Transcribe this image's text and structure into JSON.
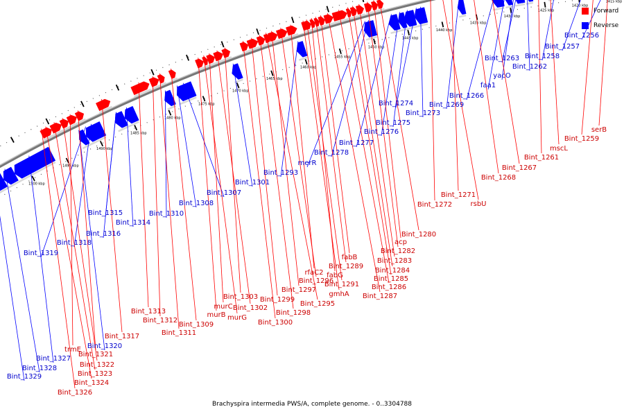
{
  "caption": "Brachyspira intermedia PWS/A, complete genome. - 0..3304788",
  "legend": [
    {
      "label": "Forward",
      "color": "#ff0000"
    },
    {
      "label": "Reverse",
      "color": "#0000ff"
    }
  ],
  "colors": {
    "forward": "#ff0000",
    "reverse": "#0000ff",
    "forward_label": "#cc0000",
    "reverse_label": "#0000cc",
    "backbone": "#777777"
  },
  "kbp_ticks": [
    "1415 kbp",
    "1420 kbp",
    "1425 kbp",
    "1430 kbp",
    "1435 kbp",
    "1440 kbp",
    "1445 kbp",
    "1450 kbp",
    "1455 kbp",
    "1460 kbp",
    "1465 kbp",
    "1470 kbp",
    "1475 kbp",
    "1480 kbp",
    "1485 kbp",
    "1490 kbp",
    "1495 kbp",
    "1500 kbp"
  ],
  "reverse_labels": [
    "Bint_1256",
    "Bint_1257",
    "Bint_1258",
    "Bint_1262",
    "Bint_1263",
    "yacO",
    "faa1",
    "Bint_1266",
    "Bint_1269",
    "Bint_1273",
    "Bint_1274",
    "Bint_1275",
    "Bint_1276",
    "Bint_1277",
    "Bint_1278",
    "merR",
    "Bint_1293",
    "Bint_1301",
    "Bint_1307",
    "Bint_1308",
    "Bint_1310",
    "Bint_1314",
    "Bint_1315",
    "Bint_1316",
    "Bint_1318",
    "Bint_1319",
    "Bint_1320",
    "Bint_1327",
    "Bint_1328",
    "Bint_1329"
  ],
  "forward_labels": [
    "serB",
    "Bint_1259",
    "mscL",
    "Bint_1261",
    "Bint_1267",
    "Bint_1268",
    "Bint_1271",
    "rsbU",
    "Bint_1272",
    "Bint_1280",
    "acp",
    "Bint_1282",
    "Bint_1283",
    "Bint_1284",
    "Bint_1285",
    "Bint_1286",
    "Bint_1287",
    "fabB",
    "Bint_1289",
    "fabG",
    "Bint_1291",
    "gmhA",
    "rfaC2",
    "Bint_1296",
    "Bint_1297",
    "Bint_1295",
    "Bint_1298",
    "Bint_1299",
    "Bint_1300",
    "Bint_1303",
    "Bint_1302",
    "murC",
    "murG",
    "murB",
    "Bint_1309",
    "Bint_1311",
    "Bint_1312",
    "Bint_1313",
    "Bint_1317",
    "Bint_1321",
    "trmE",
    "Bint_1322",
    "Bint_1323",
    "Bint_1324",
    "Bint_1326"
  ]
}
